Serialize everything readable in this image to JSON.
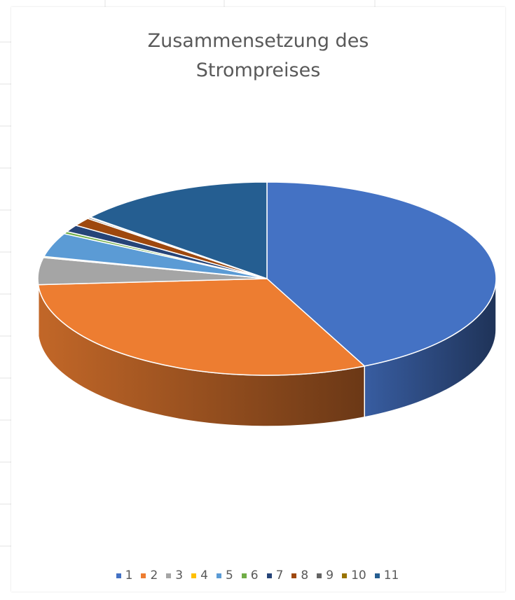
{
  "chart_data": {
    "type": "pie",
    "style": "3d",
    "title_lines": [
      "Zusammensetzung des",
      "Strompreises"
    ],
    "legend_position": "bottom",
    "categories": [
      "1",
      "2",
      "3",
      "4",
      "5",
      "6",
      "7",
      "8",
      "9",
      "10",
      "11"
    ],
    "values": [
      43.0,
      31.0,
      4.5,
      0.2,
      4.0,
      0.4,
      1.2,
      1.4,
      0.2,
      0.1,
      14.0
    ],
    "colors": [
      "#4472C4",
      "#ED7D31",
      "#A5A5A5",
      "#FFC000",
      "#5B9BD5",
      "#70AD47",
      "#264478",
      "#9E480E",
      "#636363",
      "#997300",
      "#255E91"
    ]
  }
}
